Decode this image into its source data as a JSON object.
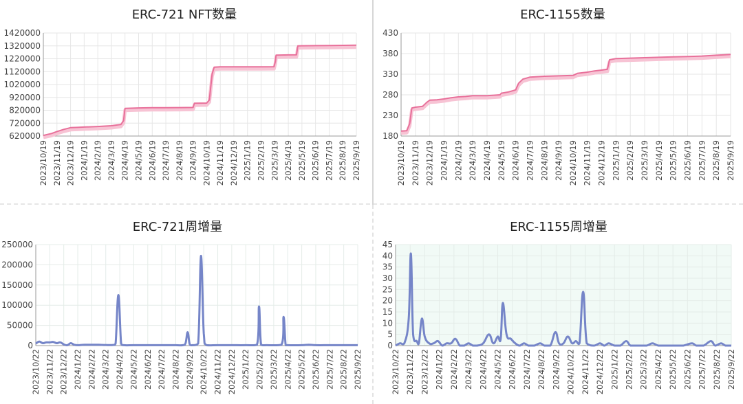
{
  "chart_data": [
    {
      "type": "line",
      "title": "ERC-721 NFT数量",
      "xlabel": "",
      "ylabel": "",
      "x_labels": [
        "2023/10/19",
        "2023/11/19",
        "2023/12/19",
        "2024/1/19",
        "2024/2/19",
        "2024/3/19",
        "2024/4/19",
        "2024/5/19",
        "2024/6/19",
        "2024/7/19",
        "2024/8/19",
        "2024/9/19",
        "2024/10/19",
        "2024/11/19",
        "2024/12/19",
        "2025/1/19",
        "2025/2/19",
        "2025/3/19",
        "2025/4/19",
        "2025/5/19",
        "2025/6/19",
        "2025/7/19",
        "2025/8/19",
        "2025/9/19"
      ],
      "ylim": [
        620000,
        1420000
      ],
      "yticks": [
        620000,
        720000,
        820000,
        920000,
        1020000,
        1120000,
        1220000,
        1320000,
        1420000
      ],
      "series": [
        {
          "values": [
            [
              0,
              625000
            ],
            [
              0.6,
              640000
            ],
            [
              1,
              655000
            ],
            [
              1.5,
              672000
            ],
            [
              2,
              685000
            ],
            [
              2.5,
              687000
            ],
            [
              3,
              690000
            ],
            [
              4,
              694000
            ],
            [
              5,
              700000
            ],
            [
              5.7,
              710000
            ],
            [
              5.9,
              740000
            ],
            [
              6,
              835000
            ],
            [
              7,
              838000
            ],
            [
              8,
              840000
            ],
            [
              9,
              840000
            ],
            [
              10,
              841000
            ],
            [
              11,
              842000
            ],
            [
              11.1,
              875000
            ],
            [
              12,
              876000
            ],
            [
              12.2,
              900000
            ],
            [
              12.4,
              1100000
            ],
            [
              12.55,
              1155000
            ],
            [
              13,
              1157000
            ],
            [
              14,
              1157000
            ],
            [
              15,
              1157000
            ],
            [
              16,
              1157000
            ],
            [
              16.95,
              1158000
            ],
            [
              17.05,
              1200000
            ],
            [
              17.1,
              1248000
            ],
            [
              18,
              1250000
            ],
            [
              18.6,
              1251000
            ],
            [
              18.7,
              1320000
            ],
            [
              19,
              1321000
            ],
            [
              20,
              1322000
            ],
            [
              21,
              1323000
            ],
            [
              22,
              1324000
            ],
            [
              23,
              1325000
            ]
          ]
        }
      ],
      "grid": true,
      "line_color": "#e8709a"
    },
    {
      "type": "line",
      "title": "ERC-1155数量",
      "xlabel": "",
      "ylabel": "",
      "x_labels": [
        "2023/10/19",
        "2023/11/19",
        "2023/12/19",
        "2024/1/19",
        "2024/2/19",
        "2024/3/19",
        "2024/4/19",
        "2024/5/19",
        "2024/6/19",
        "2024/7/19",
        "2024/8/19",
        "2024/9/19",
        "2024/10/19",
        "2024/11/19",
        "2024/12/19",
        "2025/1/19",
        "2025/2/19",
        "2025/3/19",
        "2025/4/19",
        "2025/5/19",
        "2025/6/19",
        "2025/7/19",
        "2025/8/19",
        "2025/9/19"
      ],
      "ylim": [
        180,
        430
      ],
      "yticks": [
        180,
        230,
        280,
        330,
        380,
        430
      ],
      "series": [
        {
          "values": [
            [
              0,
              192
            ],
            [
              0.4,
              193
            ],
            [
              0.6,
              210
            ],
            [
              0.75,
              248
            ],
            [
              1,
              250
            ],
            [
              1.5,
              252
            ],
            [
              1.8,
              262
            ],
            [
              2,
              267
            ],
            [
              2.5,
              268
            ],
            [
              3,
              270
            ],
            [
              3.5,
              273
            ],
            [
              4,
              275
            ],
            [
              4.5,
              276
            ],
            [
              5,
              278
            ],
            [
              6,
              278
            ],
            [
              6.9,
              280
            ],
            [
              7,
              284
            ],
            [
              7.5,
              287
            ],
            [
              8,
              292
            ],
            [
              8.2,
              308
            ],
            [
              8.5,
              318
            ],
            [
              9,
              323
            ],
            [
              9.5,
              324
            ],
            [
              10,
              325
            ],
            [
              11,
              326
            ],
            [
              12,
              327
            ],
            [
              12.3,
              332
            ],
            [
              13,
              335
            ],
            [
              13.5,
              338
            ],
            [
              14,
              340
            ],
            [
              14.4,
              342
            ],
            [
              14.55,
              365
            ],
            [
              15,
              368
            ],
            [
              16,
              369
            ],
            [
              17,
              370
            ],
            [
              18,
              371
            ],
            [
              19,
              372
            ],
            [
              20,
              373
            ],
            [
              21,
              374
            ],
            [
              22,
              376
            ],
            [
              23,
              378
            ]
          ]
        }
      ],
      "grid": true,
      "line_color": "#e8709a"
    },
    {
      "type": "area",
      "title": "ERC-721周增量",
      "xlabel": "",
      "ylabel": "",
      "x_labels": [
        "2023/10/22",
        "2023/11/22",
        "2023/12/22",
        "2024/1/22",
        "2024/2/22",
        "2024/3/22",
        "2024/4/22",
        "2024/5/22",
        "2024/6/22",
        "2024/7/22",
        "2024/8/22",
        "2024/9/22",
        "2024/10/22",
        "2024/11/22",
        "2024/12/22",
        "2025/1/22",
        "2025/2/22",
        "2025/3/22",
        "2025/4/22",
        "2025/5/22",
        "2025/6/22",
        "2025/7/22",
        "2025/8/22",
        "2025/9/22"
      ],
      "ylim": [
        0,
        250000
      ],
      "yticks": [
        0,
        50000,
        100000,
        150000,
        200000,
        250000
      ],
      "series": [
        {
          "values": [
            [
              0,
              5000
            ],
            [
              0.25,
              10000
            ],
            [
              0.5,
              6000
            ],
            [
              0.75,
              8000
            ],
            [
              1,
              8000
            ],
            [
              1.25,
              9000
            ],
            [
              1.5,
              6000
            ],
            [
              1.75,
              8000
            ],
            [
              2,
              3000
            ],
            [
              2.25,
              1000
            ],
            [
              2.5,
              6000
            ],
            [
              2.75,
              2000
            ],
            [
              3,
              1000
            ],
            [
              3.5,
              2000
            ],
            [
              4,
              2000
            ],
            [
              4.5,
              2000
            ],
            [
              5,
              1500
            ],
            [
              5.5,
              1500
            ],
            [
              5.7,
              5000
            ],
            [
              5.9,
              125000
            ],
            [
              6.1,
              5000
            ],
            [
              6.3,
              1000
            ],
            [
              7,
              1000
            ],
            [
              8,
              1000
            ],
            [
              9,
              1000
            ],
            [
              10,
              1000
            ],
            [
              10.5,
              1000
            ],
            [
              10.7,
              6000
            ],
            [
              10.85,
              33000
            ],
            [
              11,
              3000
            ],
            [
              11.2,
              1000
            ],
            [
              11.6,
              5000
            ],
            [
              11.8,
              222000
            ],
            [
              12.0,
              30000
            ],
            [
              12.2,
              1000
            ],
            [
              13,
              1000
            ],
            [
              14,
              1000
            ],
            [
              15,
              1000
            ],
            [
              15.8,
              2000
            ],
            [
              15.95,
              97000
            ],
            [
              16.1,
              2000
            ],
            [
              16.5,
              1000
            ],
            [
              17.55,
              2000
            ],
            [
              17.7,
              71000
            ],
            [
              17.85,
              2000
            ],
            [
              18,
              1000
            ],
            [
              19,
              1000
            ],
            [
              19.5,
              2000
            ],
            [
              20,
              1000
            ],
            [
              21,
              1000
            ],
            [
              22,
              1000
            ],
            [
              23,
              1000
            ]
          ]
        }
      ],
      "grid": true,
      "line_color": "#7585c8"
    },
    {
      "type": "area",
      "title": "ERC-1155周增量",
      "xlabel": "",
      "ylabel": "",
      "x_labels": [
        "2023/10/22",
        "2023/11/22",
        "2023/12/22",
        "2024/1/22",
        "2024/2/22",
        "2024/3/22",
        "2024/4/22",
        "2024/5/22",
        "2024/6/22",
        "2024/7/22",
        "2024/8/22",
        "2024/9/22",
        "2024/10/22",
        "2024/11/22",
        "2024/12/22",
        "2025/1/22",
        "2025/2/22",
        "2025/3/22",
        "2025/4/22",
        "2025/5/22",
        "2025/6/22",
        "2025/7/22",
        "2025/8/22",
        "2025/9/22"
      ],
      "ylim": [
        0,
        45
      ],
      "yticks": [
        0,
        5,
        10,
        15,
        20,
        25,
        30,
        35,
        40,
        45
      ],
      "series": [
        {
          "values": [
            [
              0,
              0
            ],
            [
              0.3,
              1
            ],
            [
              0.6,
              1
            ],
            [
              0.9,
              12
            ],
            [
              1.05,
              41
            ],
            [
              1.2,
              5
            ],
            [
              1.45,
              2
            ],
            [
              1.6,
              1
            ],
            [
              1.8,
              12
            ],
            [
              2.0,
              4
            ],
            [
              2.3,
              1
            ],
            [
              2.6,
              1
            ],
            [
              2.9,
              2
            ],
            [
              3.2,
              0
            ],
            [
              3.5,
              1
            ],
            [
              3.8,
              1
            ],
            [
              4.1,
              3
            ],
            [
              4.4,
              0
            ],
            [
              4.7,
              0
            ],
            [
              5.0,
              1
            ],
            [
              5.3,
              0
            ],
            [
              5.6,
              0
            ],
            [
              6.0,
              1
            ],
            [
              6.4,
              5
            ],
            [
              6.7,
              1
            ],
            [
              7.0,
              4
            ],
            [
              7.2,
              3
            ],
            [
              7.35,
              19
            ],
            [
              7.6,
              5
            ],
            [
              7.9,
              3
            ],
            [
              8.2,
              1
            ],
            [
              8.5,
              0
            ],
            [
              8.8,
              1
            ],
            [
              9.1,
              0
            ],
            [
              9.5,
              0
            ],
            [
              9.9,
              1
            ],
            [
              10.2,
              0
            ],
            [
              10.6,
              0
            ],
            [
              10.95,
              6
            ],
            [
              11.2,
              1
            ],
            [
              11.5,
              1
            ],
            [
              11.8,
              4
            ],
            [
              12.1,
              1
            ],
            [
              12.35,
              2
            ],
            [
              12.6,
              1
            ],
            [
              12.85,
              24
            ],
            [
              13.1,
              1
            ],
            [
              13.6,
              0
            ],
            [
              14.0,
              1
            ],
            [
              14.3,
              0
            ],
            [
              14.6,
              1
            ],
            [
              15.0,
              0
            ],
            [
              15.4,
              0
            ],
            [
              15.8,
              2
            ],
            [
              16.1,
              0
            ],
            [
              16.6,
              0
            ],
            [
              17.2,
              0
            ],
            [
              17.6,
              1
            ],
            [
              18.0,
              0
            ],
            [
              18.6,
              0
            ],
            [
              19.2,
              0
            ],
            [
              19.7,
              0
            ],
            [
              20.3,
              1
            ],
            [
              20.6,
              0
            ],
            [
              21.1,
              0
            ],
            [
              21.6,
              2
            ],
            [
              21.9,
              0
            ],
            [
              22.3,
              1
            ],
            [
              22.6,
              0
            ],
            [
              23.0,
              0
            ]
          ]
        }
      ],
      "grid": true,
      "line_color": "#7585c8",
      "area_color": "#f1faf6"
    }
  ]
}
